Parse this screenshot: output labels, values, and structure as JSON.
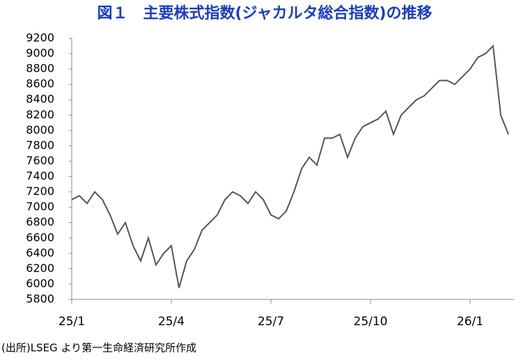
{
  "chart_data": {
    "type": "line",
    "title": "図１　主要株式指数(ジャカルタ総合指数)の推移",
    "source": "(出所)LSEG より第一生命経済研究所作成",
    "categories": [
      "25/1",
      null,
      null,
      null,
      null,
      null,
      null,
      null,
      null,
      null,
      null,
      null,
      null,
      "25/4",
      null,
      null,
      null,
      null,
      null,
      null,
      null,
      null,
      null,
      null,
      null,
      null,
      "25/7",
      null,
      null,
      null,
      null,
      null,
      null,
      null,
      null,
      null,
      null,
      null,
      null,
      "25/10",
      null,
      null,
      null,
      null,
      null,
      null,
      null,
      null,
      null,
      null,
      null,
      null,
      "26/1",
      null,
      null,
      null,
      null,
      null
    ],
    "values": [
      7100,
      7150,
      7050,
      7200,
      7100,
      6900,
      6650,
      6800,
      6500,
      6300,
      6600,
      6250,
      6400,
      6500,
      5950,
      6300,
      6450,
      6700,
      6800,
      6900,
      7100,
      7200,
      7150,
      7050,
      7200,
      7100,
      6900,
      6850,
      6950,
      7200,
      7500,
      7650,
      7550,
      7900,
      7900,
      7950,
      7650,
      7900,
      8050,
      8100,
      8150,
      8250,
      7950,
      8200,
      8300,
      8400,
      8450,
      8550,
      8650,
      8650,
      8600,
      8700,
      8800,
      8950,
      9000,
      9100,
      8200,
      7950
    ],
    "color": "#555555",
    "ylim": [
      5800,
      9200
    ],
    "yticks": [
      5800,
      6000,
      6200,
      6400,
      6600,
      6800,
      7000,
      7200,
      7400,
      7600,
      7800,
      8000,
      8200,
      8400,
      8600,
      8800,
      9000,
      9200
    ]
  }
}
